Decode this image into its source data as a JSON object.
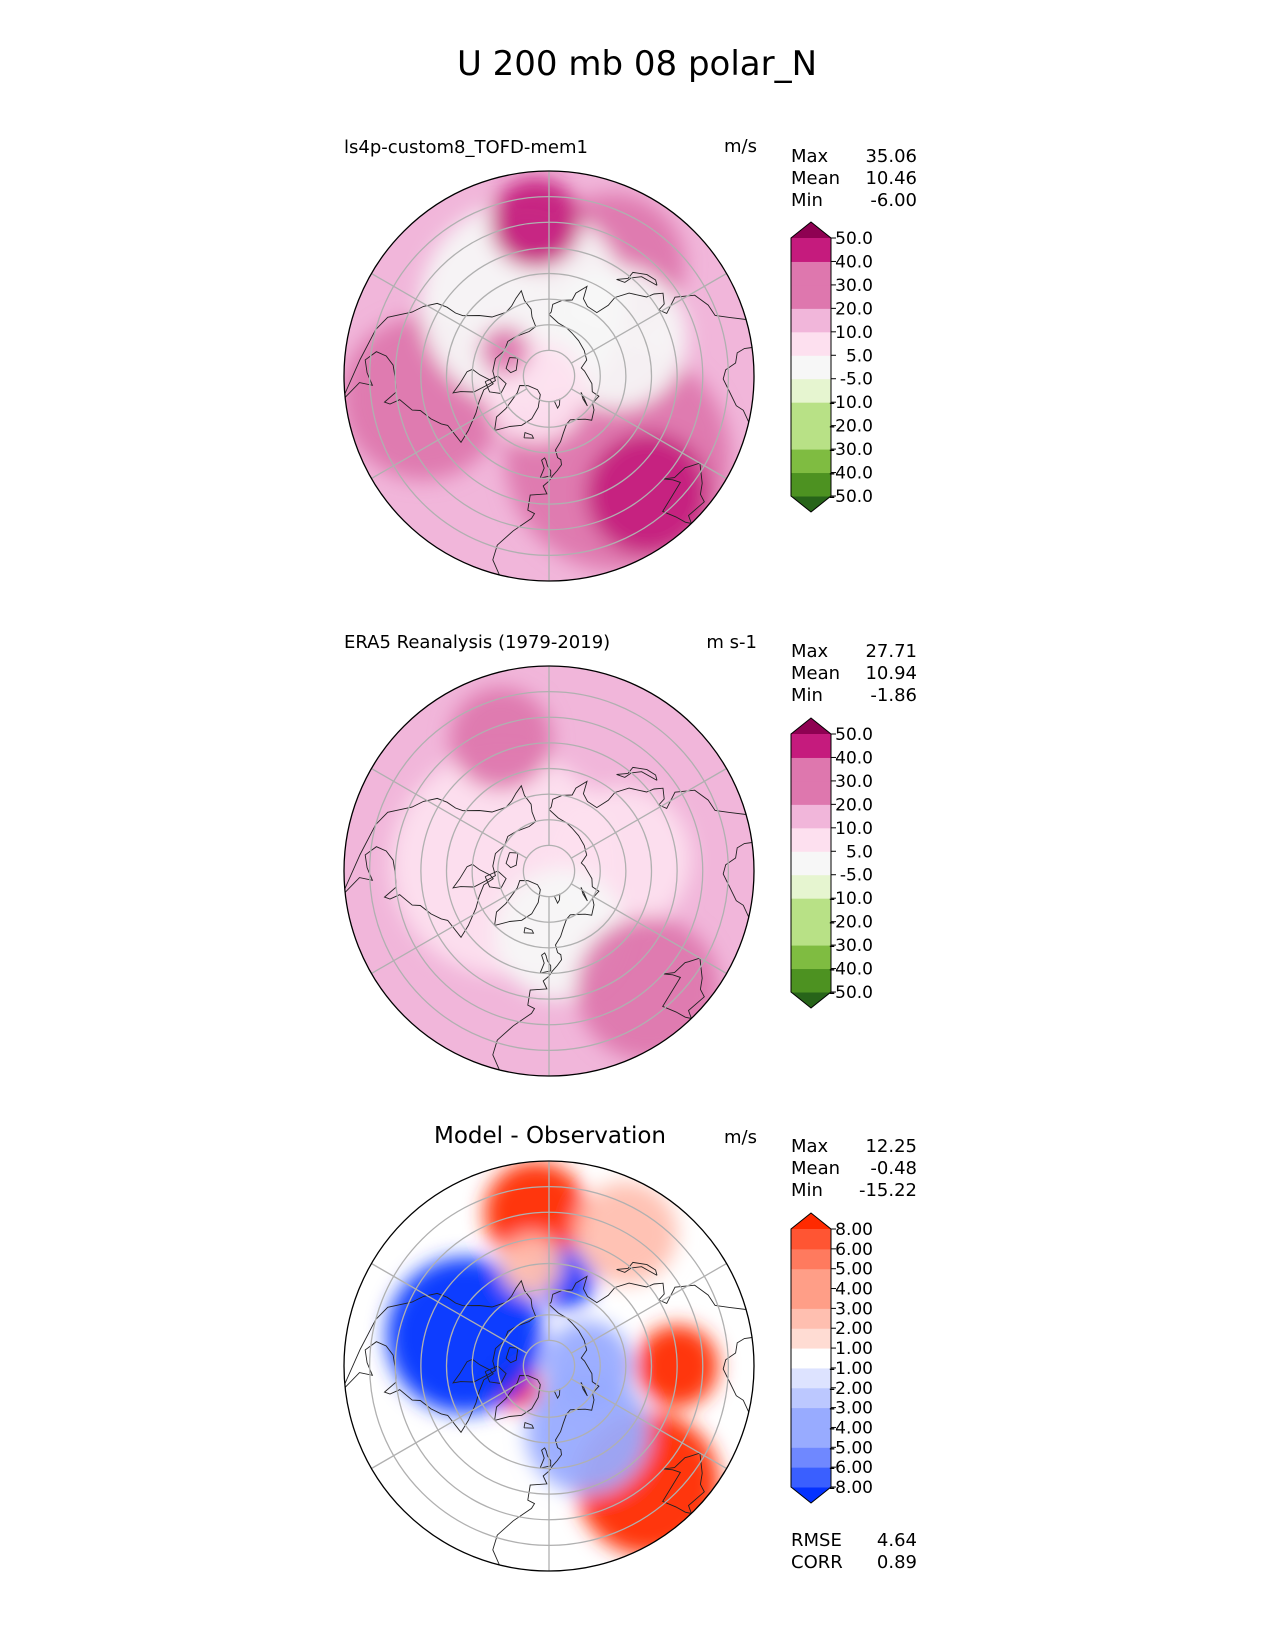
{
  "figure": {
    "title": "U 200 mb 08 polar_N"
  },
  "colors": {
    "full_field": [
      "#276419",
      "#4d9221",
      "#7fbc41",
      "#b8e186",
      "#e6f5d0",
      "#f7f7f7",
      "#fde0ef",
      "#f1b6da",
      "#de77ae",
      "#c51b7d",
      "#8e0152"
    ],
    "diff_field": [
      "#0432ff",
      "#3a5fff",
      "#6f88ff",
      "#98abff",
      "#bcc8ff",
      "#dde3ff",
      "#ffffff",
      "#ffdcd3",
      "#ffbfb0",
      "#ff9e87",
      "#ff7a5e",
      "#ff5533",
      "#ff2a00"
    ],
    "coast": "#222222",
    "grid": "#b0b0b0"
  },
  "chart_data": [
    {
      "type": "heatmap",
      "projection": "north-polar-stereographic",
      "title": "ls4p-custom8_TOFD-mem1",
      "units": "m/s",
      "stats": {
        "max_label": "Max",
        "mean_label": "Mean",
        "min_label": "Min",
        "max": "35.06",
        "mean": "10.46",
        "min": "-6.00"
      },
      "colorbar_ticks": [
        "50.0",
        "40.0",
        "30.0",
        "20.0",
        "10.0",
        "5.0",
        "-5.0",
        "-10.0",
        "-20.0",
        "-30.0",
        "-40.0",
        "-50.0"
      ],
      "colorbar_levels": [
        -50,
        -40,
        -30,
        -20,
        -10,
        -5,
        5,
        10,
        20,
        30,
        40,
        50
      ],
      "background_level": 7,
      "regions": [
        {
          "level": 8,
          "lat": 48,
          "lon": 40,
          "r": 0.55
        },
        {
          "level": 8,
          "lat": 40,
          "lon": -80,
          "r": 0.4
        },
        {
          "level": 8,
          "lat": 40,
          "lon": 150,
          "r": 0.35
        },
        {
          "level": 5,
          "lat": 60,
          "lon": -160,
          "r": 0.5
        },
        {
          "level": 5,
          "lat": 60,
          "lon": 120,
          "r": 0.35
        },
        {
          "level": 6,
          "lat": 82,
          "lon": -40,
          "r": 0.25
        },
        {
          "level": 9,
          "lat": 30,
          "lon": 40,
          "r": 0.3
        },
        {
          "level": 9,
          "lat": 30,
          "lon": -175,
          "r": 0.22
        },
        {
          "level": 8,
          "lat": 70,
          "lon": -120,
          "r": 0.12
        }
      ]
    },
    {
      "type": "heatmap",
      "projection": "north-polar-stereographic",
      "title": "ERA5 Reanalysis (1979-2019)",
      "units": "m s-1",
      "stats": {
        "max_label": "Max",
        "mean_label": "Mean",
        "min_label": "Min",
        "max": "27.71",
        "mean": "10.94",
        "min": "-1.86"
      },
      "colorbar_ticks": [
        "50.0",
        "40.0",
        "30.0",
        "20.0",
        "10.0",
        "5.0",
        "-5.0",
        "-10.0",
        "-20.0",
        "-30.0",
        "-40.0",
        "-50.0"
      ],
      "colorbar_levels": [
        -50,
        -40,
        -30,
        -20,
        -10,
        -5,
        5,
        10,
        20,
        30,
        40,
        50
      ],
      "background_level": 7,
      "regions": [
        {
          "level": 6,
          "lat": 72,
          "lon": -100,
          "r": 0.55
        },
        {
          "level": 6,
          "lat": 62,
          "lon": 100,
          "r": 0.35
        },
        {
          "level": 5,
          "lat": 65,
          "lon": 10,
          "r": 0.32
        },
        {
          "level": 8,
          "lat": 30,
          "lon": 40,
          "r": 0.35
        },
        {
          "level": 8,
          "lat": 35,
          "lon": -160,
          "r": 0.25
        }
      ]
    },
    {
      "type": "heatmap",
      "projection": "north-polar-stereographic",
      "title": "Model - Observation",
      "units": "m/s",
      "stats": {
        "max_label": "Max",
        "mean_label": "Mean",
        "min_label": "Min",
        "max": "12.25",
        "mean": "-0.48",
        "min": "-15.22"
      },
      "colorbar_ticks": [
        "8.00",
        "6.00",
        "5.00",
        "4.00",
        "3.00",
        "2.00",
        "1.00",
        "-1.00",
        "-2.00",
        "-3.00",
        "-4.00",
        "-5.00",
        "-6.00",
        "-8.00"
      ],
      "colorbar_levels": [
        -8,
        -6,
        -5,
        -4,
        -3,
        -2,
        -1,
        1,
        2,
        3,
        4,
        5,
        6,
        8
      ],
      "background_level": 6,
      "regions": [
        {
          "level": 12,
          "lat": 30,
          "lon": 40,
          "r": 0.35
        },
        {
          "level": 12,
          "lat": 30,
          "lon": -175,
          "r": 0.25
        },
        {
          "level": 12,
          "lat": 40,
          "lon": 90,
          "r": 0.2
        },
        {
          "level": 12,
          "lat": 75,
          "lon": -60,
          "r": 0.12
        },
        {
          "level": 0,
          "lat": 55,
          "lon": -110,
          "r": 0.38
        },
        {
          "level": 0,
          "lat": 55,
          "lon": 170,
          "r": 0.15
        },
        {
          "level": 3,
          "lat": 60,
          "lon": 30,
          "r": 0.3
        },
        {
          "level": 3,
          "lat": 75,
          "lon": 90,
          "r": 0.22
        },
        {
          "level": 8,
          "lat": 30,
          "lon": 150,
          "r": 0.25
        },
        {
          "level": 8,
          "lat": 50,
          "lon": -170,
          "r": 0.15
        }
      ],
      "extra_stats": {
        "rmse_label": "RMSE",
        "rmse": "4.64",
        "corr_label": "CORR",
        "corr": "0.89"
      }
    }
  ]
}
